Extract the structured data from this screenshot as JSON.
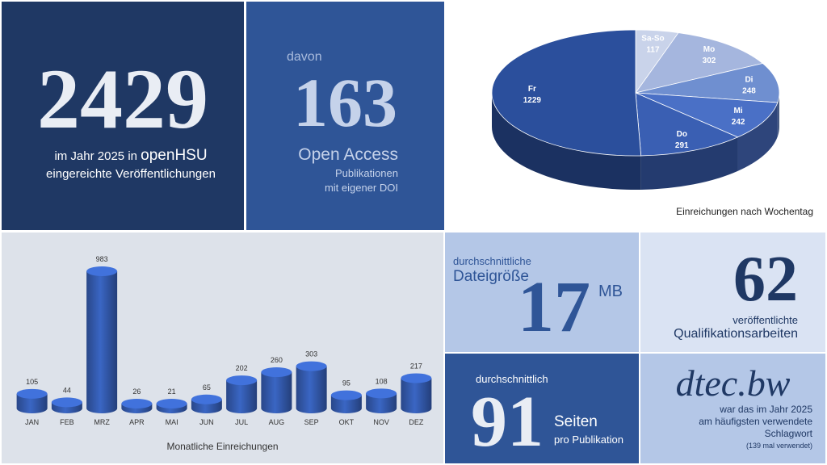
{
  "tile_total": {
    "number": "2429",
    "line1_prefix": "im Jahr 2025 in ",
    "line1_brand": "openHSU",
    "line2": "eingereichte Veröffentlichungen"
  },
  "tile_open_access": {
    "davon": "davon",
    "number": "163",
    "label": "Open Access",
    "sub1": "Publikationen",
    "sub2": "mit eigener DOI"
  },
  "tile_filesize": {
    "line1": "durchschnittliche",
    "line2": "Dateigröße",
    "number": "17",
    "unit": "MB"
  },
  "tile_theses": {
    "number": "62",
    "line1": "veröffentlichte",
    "line2": "Qualifikationsarbeiten"
  },
  "tile_pages": {
    "line1": "durchschnittlich",
    "number": "91",
    "unit": "Seiten",
    "sub": "pro Publikation"
  },
  "tile_keyword": {
    "keyword": "dtec.bw",
    "line1": "war das im Jahr 2025",
    "line2": "am häufigsten verwendete",
    "line3": "Schlagwort",
    "note": "(139 mal verwendet)"
  },
  "chart_data": [
    {
      "type": "pie",
      "title": "Einreichungen nach Wochentag",
      "categories": [
        "Sa-So",
        "Mo",
        "Di",
        "Mi",
        "Do",
        "Fr"
      ],
      "values": [
        117,
        302,
        248,
        242,
        291,
        1229
      ],
      "colors": [
        "#c9d3ea",
        "#a5b6de",
        "#6f8fd0",
        "#4a70c6",
        "#3a5fb3",
        "#2b4f9c"
      ],
      "legend": "none",
      "style": "3d"
    },
    {
      "type": "bar",
      "title": "Monatliche Einreichungen",
      "categories": [
        "JAN",
        "FEB",
        "MRZ",
        "APR",
        "MAI",
        "JUN",
        "JUL",
        "AUG",
        "SEP",
        "OKT",
        "NOV",
        "DEZ"
      ],
      "values": [
        105,
        44,
        983,
        26,
        21,
        65,
        202,
        260,
        303,
        95,
        108,
        217
      ],
      "color": "#3a66c4",
      "grid": false,
      "legend": "none",
      "style": "3d-cylinder"
    }
  ]
}
